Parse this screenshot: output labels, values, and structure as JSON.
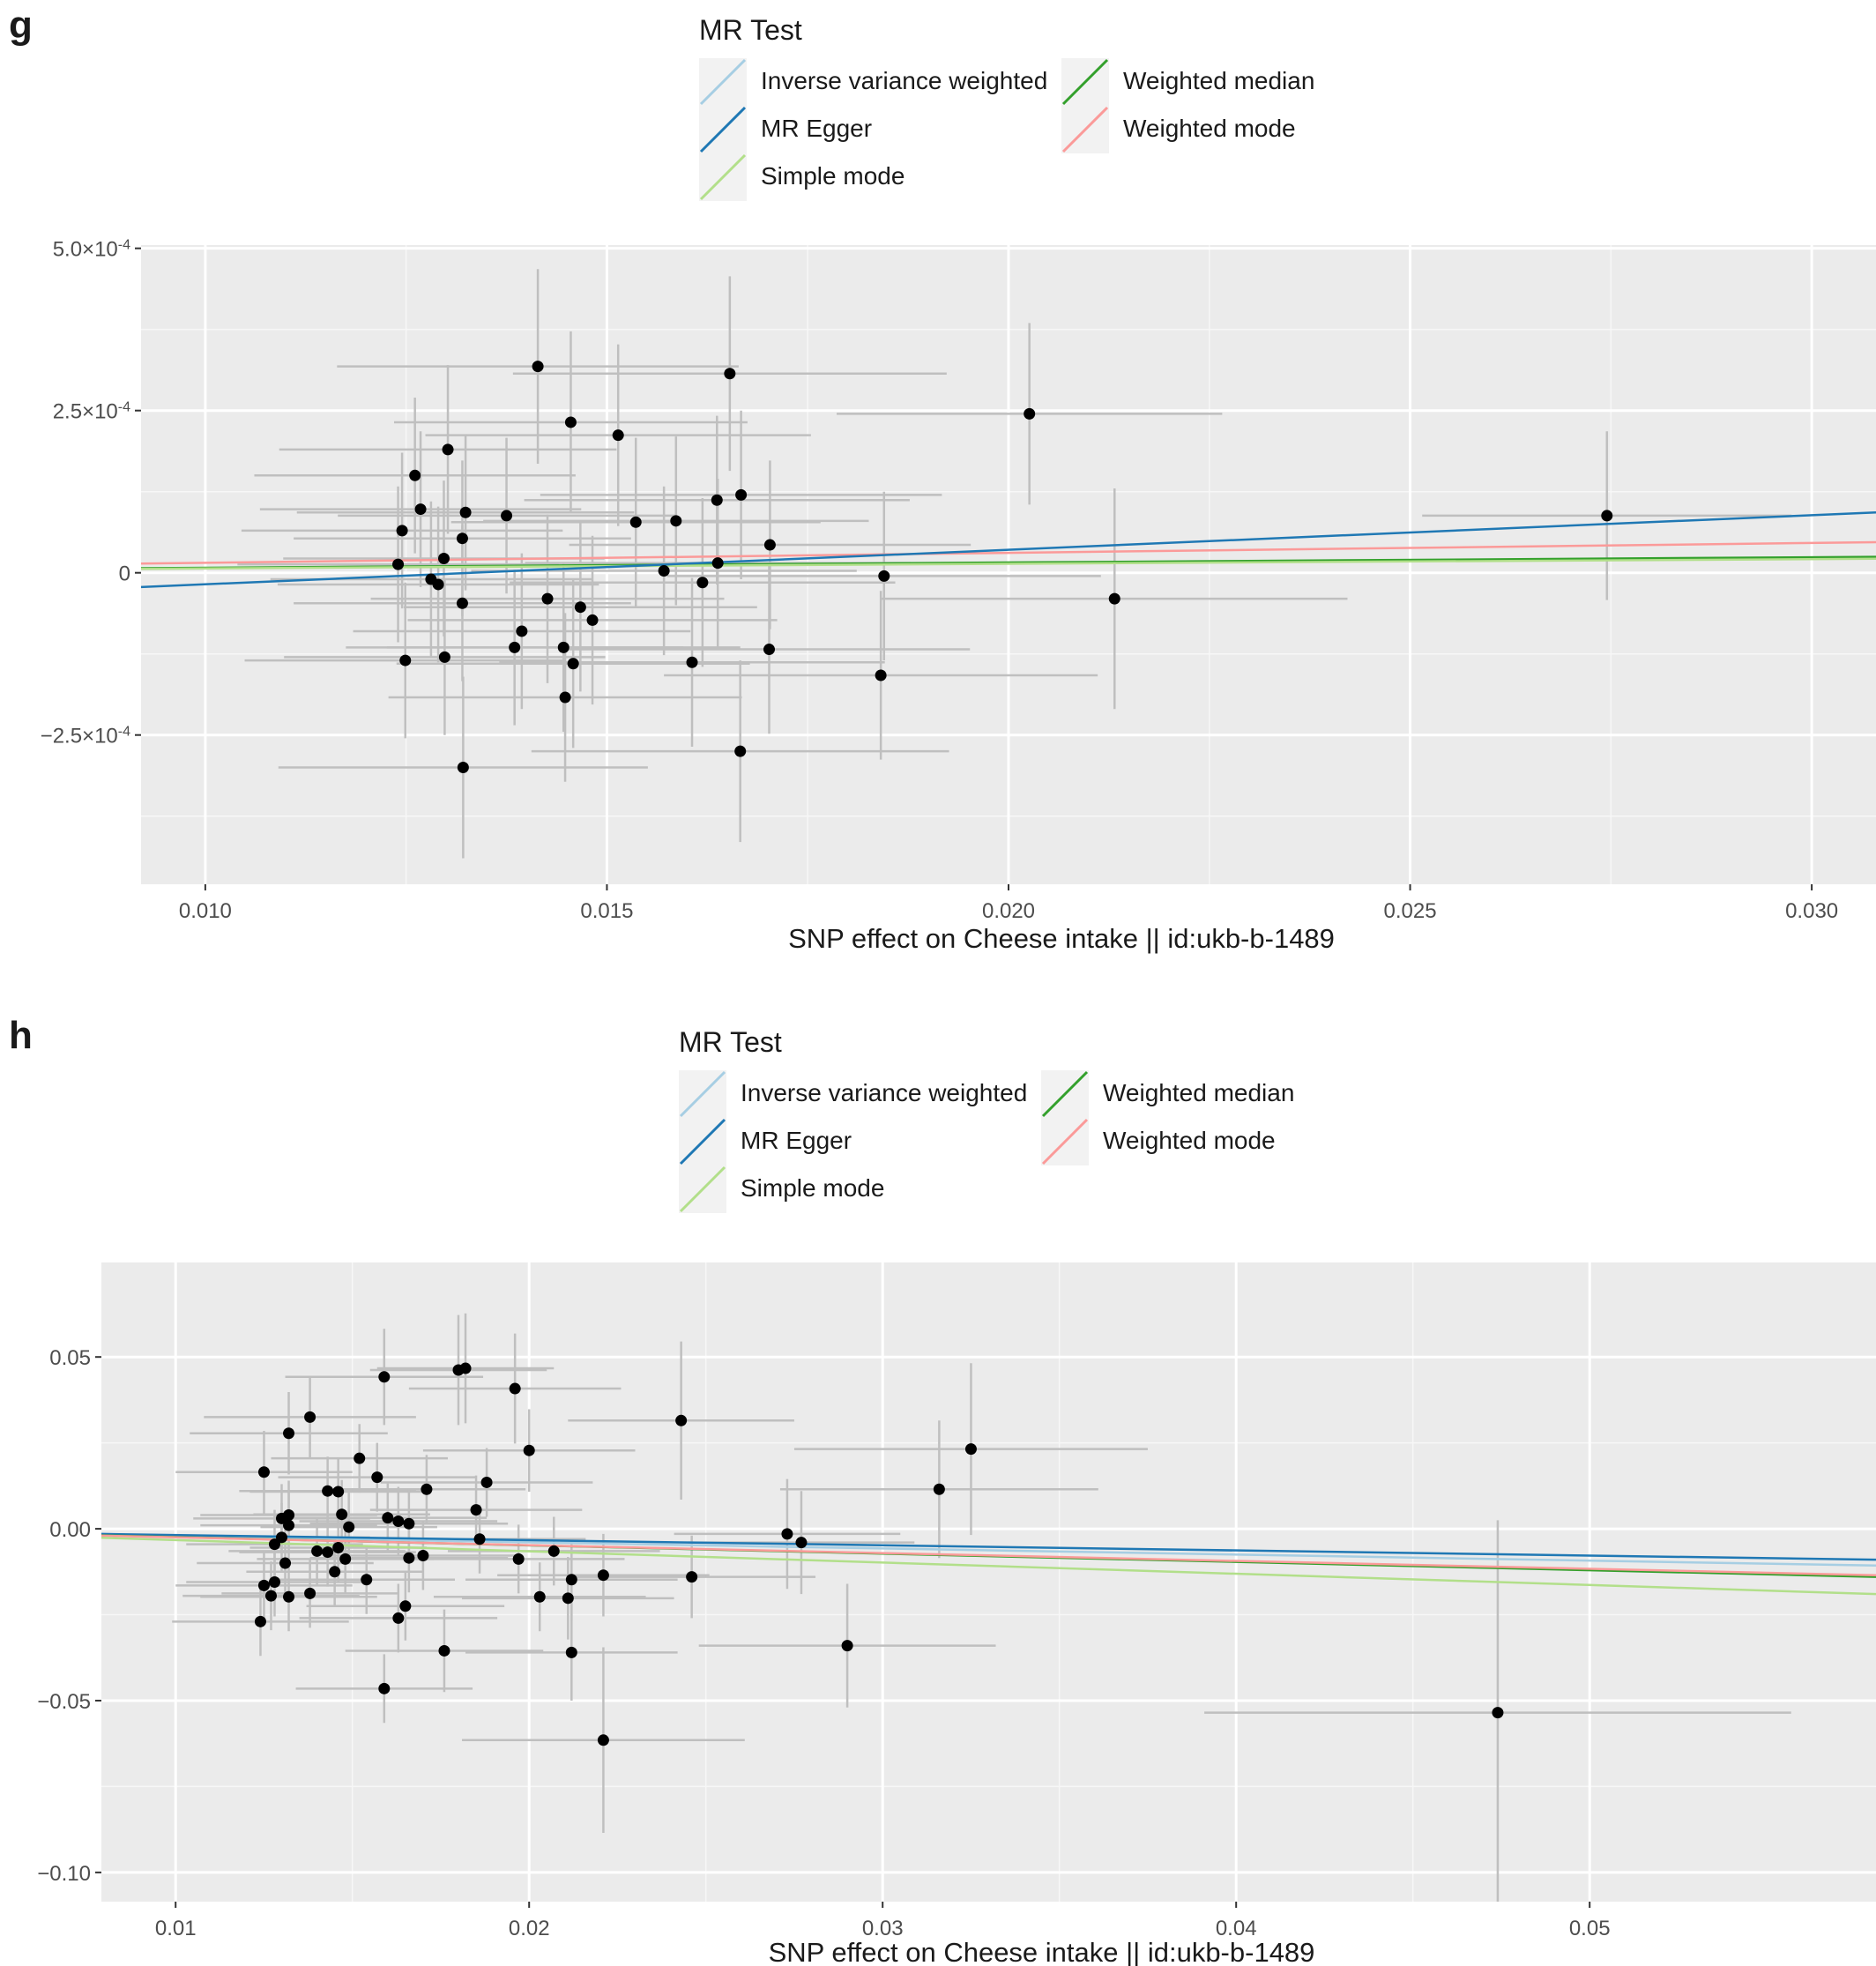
{
  "figures": [
    {
      "panel_label": "g",
      "legend_title": "MR Test",
      "legend_items": [
        {
          "name": "Inverse variance weighted",
          "color": "#a6cee3"
        },
        {
          "name": "MR Egger",
          "color": "#1f78b4"
        },
        {
          "name": "Simple mode",
          "color": "#b2df8a"
        },
        {
          "name": "Weighted median",
          "color": "#33a02c"
        },
        {
          "name": "Weighted mode",
          "color": "#fb9a99"
        }
      ]
    },
    {
      "panel_label": "h",
      "legend_title": "MR Test",
      "legend_items": [
        {
          "name": "Inverse variance weighted",
          "color": "#a6cee3"
        },
        {
          "name": "MR Egger",
          "color": "#1f78b4"
        },
        {
          "name": "Simple mode",
          "color": "#b2df8a"
        },
        {
          "name": "Weighted median",
          "color": "#33a02c"
        },
        {
          "name": "Weighted mode",
          "color": "#fb9a99"
        }
      ]
    }
  ],
  "chart_data": [
    {
      "type": "scatter",
      "xlabel": "SNP effect on Cheese intake || id:ukb-b-1489",
      "ylabel": "",
      "xlim": [
        0.0092,
        0.0308
      ],
      "ylim": [
        -0.00048,
        0.000505
      ],
      "xticks": [
        0.01,
        0.015,
        0.02,
        0.025,
        0.03
      ],
      "xtick_labels": [
        "0.010",
        "0.015",
        "0.020",
        "0.025",
        "0.030"
      ],
      "yticks": [
        0.0005,
        0.00025,
        0,
        -0.00025
      ],
      "ytick_labels": [
        {
          "base": "5.0×10",
          "exp": "-4"
        },
        {
          "base": "2.5×10",
          "exp": "-4"
        },
        {
          "base": "0",
          "exp": ""
        },
        {
          "base": "−2.5×10",
          "exp": "-4"
        }
      ],
      "grid": true,
      "points": [
        {
          "x": 0.01414,
          "y": 0.000318,
          "xse": 0.0025,
          "yse": 0.00015
        },
        {
          "x": 0.01653,
          "y": 0.000307,
          "xse": 0.0027,
          "yse": 0.00015
        },
        {
          "x": 0.01455,
          "y": 0.000232,
          "xse": 0.0022,
          "yse": 0.00014
        },
        {
          "x": 0.01514,
          "y": 0.000212,
          "xse": 0.0024,
          "yse": 0.00014
        },
        {
          "x": 0.02026,
          "y": 0.000245,
          "xse": 0.0024,
          "yse": 0.00014
        },
        {
          "x": 0.01302,
          "y": 0.00019,
          "xse": 0.0021,
          "yse": 0.00013
        },
        {
          "x": 0.01261,
          "y": 0.00015,
          "xse": 0.002,
          "yse": 0.00012
        },
        {
          "x": 0.01268,
          "y": 9.8e-05,
          "xse": 0.002,
          "yse": 0.00012
        },
        {
          "x": 0.01324,
          "y": 9.3e-05,
          "xse": 0.0021,
          "yse": 0.00012
        },
        {
          "x": 0.01375,
          "y": 8.8e-05,
          "xse": 0.0021,
          "yse": 0.00012
        },
        {
          "x": 0.01536,
          "y": 7.8e-05,
          "xse": 0.0023,
          "yse": 0.00013
        },
        {
          "x": 0.01586,
          "y": 8e-05,
          "xse": 0.0024,
          "yse": 0.00013
        },
        {
          "x": 0.01637,
          "y": 0.000112,
          "xse": 0.0024,
          "yse": 0.00013
        },
        {
          "x": 0.01667,
          "y": 0.00012,
          "xse": 0.0025,
          "yse": 0.00013
        },
        {
          "x": 0.01245,
          "y": 6.5e-05,
          "xse": 0.002,
          "yse": 0.00012
        },
        {
          "x": 0.0132,
          "y": 5.3e-05,
          "xse": 0.0021,
          "yse": 0.00012
        },
        {
          "x": 0.01297,
          "y": 2.2e-05,
          "xse": 0.002,
          "yse": 0.00012
        },
        {
          "x": 0.0124,
          "y": 1.3e-05,
          "xse": 0.002,
          "yse": 0.00012
        },
        {
          "x": 0.01703,
          "y": 4.3e-05,
          "xse": 0.0025,
          "yse": 0.00013
        },
        {
          "x": 0.01638,
          "y": 1.5e-05,
          "xse": 0.0024,
          "yse": 0.00013
        },
        {
          "x": 0.01571,
          "y": 3e-06,
          "xse": 0.0024,
          "yse": 0.00013
        },
        {
          "x": 0.01281,
          "y": -1e-05,
          "xse": 0.002,
          "yse": 0.00012
        },
        {
          "x": 0.0129,
          "y": -1.8e-05,
          "xse": 0.002,
          "yse": 0.00012
        },
        {
          "x": 0.01619,
          "y": -1.5e-05,
          "xse": 0.0024,
          "yse": 0.00013
        },
        {
          "x": 0.01845,
          "y": -5e-06,
          "xse": 0.0027,
          "yse": 0.00013
        },
        {
          "x": 0.0132,
          "y": -4.7e-05,
          "xse": 0.0021,
          "yse": 0.00012
        },
        {
          "x": 0.01426,
          "y": -4e-05,
          "xse": 0.0022,
          "yse": 0.00013
        },
        {
          "x": 0.01467,
          "y": -5.3e-05,
          "xse": 0.0022,
          "yse": 0.00013
        },
        {
          "x": 0.01482,
          "y": -7.3e-05,
          "xse": 0.0023,
          "yse": 0.00013
        },
        {
          "x": 0.01394,
          "y": -9e-05,
          "xse": 0.0021,
          "yse": 0.00012
        },
        {
          "x": 0.01385,
          "y": -0.000115,
          "xse": 0.0021,
          "yse": 0.00012
        },
        {
          "x": 0.01446,
          "y": -0.000115,
          "xse": 0.0022,
          "yse": 0.00013
        },
        {
          "x": 0.01702,
          "y": -0.000118,
          "xse": 0.0025,
          "yse": 0.00013
        },
        {
          "x": 0.01249,
          "y": -0.000135,
          "xse": 0.002,
          "yse": 0.00012
        },
        {
          "x": 0.01298,
          "y": -0.00013,
          "xse": 0.002,
          "yse": 0.00012
        },
        {
          "x": 0.01458,
          "y": -0.00014,
          "xse": 0.0022,
          "yse": 0.00013
        },
        {
          "x": 0.01606,
          "y": -0.000138,
          "xse": 0.0024,
          "yse": 0.00013
        },
        {
          "x": 0.02132,
          "y": -4e-05,
          "xse": 0.0029,
          "yse": 0.00017
        },
        {
          "x": 0.01841,
          "y": -0.000158,
          "xse": 0.0027,
          "yse": 0.00013
        },
        {
          "x": 0.01448,
          "y": -0.000192,
          "xse": 0.0022,
          "yse": 0.00013
        },
        {
          "x": 0.01666,
          "y": -0.000275,
          "xse": 0.0026,
          "yse": 0.00014
        },
        {
          "x": 0.01321,
          "y": -0.0003,
          "xse": 0.0023,
          "yse": 0.00014
        },
        {
          "x": 0.02745,
          "y": 8.8e-05,
          "xse": 0.0023,
          "yse": 0.00013
        }
      ],
      "series": [
        {
          "name": "Inverse variance weighted",
          "color": "#a6cee3",
          "x": [
            0.0092,
            0.0308
          ],
          "y": [
            6.8e-06,
            2.36e-05
          ]
        },
        {
          "name": "Weighted median",
          "color": "#33a02c",
          "x": [
            0.0092,
            0.0308
          ],
          "y": [
            7.1e-06,
            2.46e-05
          ]
        },
        {
          "name": "Simple mode",
          "color": "#b2df8a",
          "x": [
            0.0092,
            0.0308
          ],
          "y": [
            6.1e-06,
            2.16e-05
          ]
        },
        {
          "name": "Weighted mode",
          "color": "#fb9a99",
          "x": [
            0.0092,
            0.0308
          ],
          "y": [
            1.42e-05,
            4.72e-05
          ]
        },
        {
          "name": "MR Egger",
          "color": "#1f78b4",
          "x": [
            0.0092,
            0.0308
          ],
          "y": [
            -2.2e-05,
            9.3e-05
          ]
        }
      ]
    },
    {
      "type": "scatter",
      "xlabel": "SNP effect on Cheese intake || id:ukb-b-1489",
      "ylabel": "",
      "xlim": [
        0.0079,
        0.0581
      ],
      "ylim": [
        -0.1085,
        0.0775
      ],
      "xticks": [
        0.01,
        0.02,
        0.03,
        0.04,
        0.05
      ],
      "xtick_labels": [
        "0.01",
        "0.02",
        "0.03",
        "0.04",
        "0.05"
      ],
      "yticks": [
        0.05,
        0,
        -0.05,
        -0.1
      ],
      "ytick_labels": [
        {
          "base": "0.05",
          "exp": ""
        },
        {
          "base": "0.00",
          "exp": ""
        },
        {
          "base": "−0.05",
          "exp": ""
        },
        {
          "base": "−0.10",
          "exp": ""
        }
      ],
      "grid": true,
      "points": [
        {
          "x": 0.0159,
          "y": 0.0442,
          "xse": 0.0028,
          "yse": 0.014
        },
        {
          "x": 0.018,
          "y": 0.0462,
          "xse": 0.0025,
          "yse": 0.016
        },
        {
          "x": 0.0182,
          "y": 0.0467,
          "xse": 0.0025,
          "yse": 0.016
        },
        {
          "x": 0.0196,
          "y": 0.0408,
          "xse": 0.003,
          "yse": 0.016
        },
        {
          "x": 0.0243,
          "y": 0.0315,
          "xse": 0.0032,
          "yse": 0.023
        },
        {
          "x": 0.0138,
          "y": 0.0325,
          "xse": 0.003,
          "yse": 0.012
        },
        {
          "x": 0.0132,
          "y": 0.0278,
          "xse": 0.0028,
          "yse": 0.012
        },
        {
          "x": 0.02,
          "y": 0.0228,
          "xse": 0.003,
          "yse": 0.012
        },
        {
          "x": 0.0325,
          "y": 0.0232,
          "xse": 0.005,
          "yse": 0.025
        },
        {
          "x": 0.0152,
          "y": 0.0205,
          "xse": 0.0025,
          "yse": 0.01
        },
        {
          "x": 0.0125,
          "y": 0.0165,
          "xse": 0.0025,
          "yse": 0.012
        },
        {
          "x": 0.0157,
          "y": 0.015,
          "xse": 0.0028,
          "yse": 0.01
        },
        {
          "x": 0.0188,
          "y": 0.0135,
          "xse": 0.003,
          "yse": 0.01
        },
        {
          "x": 0.0316,
          "y": 0.0115,
          "xse": 0.0045,
          "yse": 0.02
        },
        {
          "x": 0.0171,
          "y": 0.0115,
          "xse": 0.0028,
          "yse": 0.01
        },
        {
          "x": 0.0143,
          "y": 0.011,
          "xse": 0.0025,
          "yse": 0.01
        },
        {
          "x": 0.0146,
          "y": 0.0108,
          "xse": 0.0025,
          "yse": 0.01
        },
        {
          "x": 0.0185,
          "y": 0.0055,
          "xse": 0.003,
          "yse": 0.01
        },
        {
          "x": 0.0147,
          "y": 0.0042,
          "xse": 0.0025,
          "yse": 0.01
        },
        {
          "x": 0.0132,
          "y": 0.004,
          "xse": 0.0025,
          "yse": 0.01
        },
        {
          "x": 0.013,
          "y": 0.003,
          "xse": 0.0025,
          "yse": 0.01
        },
        {
          "x": 0.016,
          "y": 0.0032,
          "xse": 0.0028,
          "yse": 0.01
        },
        {
          "x": 0.0163,
          "y": 0.0022,
          "xse": 0.0028,
          "yse": 0.01
        },
        {
          "x": 0.0166,
          "y": 0.0015,
          "xse": 0.0028,
          "yse": 0.01
        },
        {
          "x": 0.0132,
          "y": 0.001,
          "xse": 0.0025,
          "yse": 0.01
        },
        {
          "x": 0.0149,
          "y": 0.0005,
          "xse": 0.0025,
          "yse": 0.01
        },
        {
          "x": 0.0273,
          "y": -0.0015,
          "xse": 0.0032,
          "yse": 0.016
        },
        {
          "x": 0.013,
          "y": -0.0025,
          "xse": 0.0025,
          "yse": 0.01
        },
        {
          "x": 0.0186,
          "y": -0.003,
          "xse": 0.003,
          "yse": 0.01
        },
        {
          "x": 0.0277,
          "y": -0.004,
          "xse": 0.0032,
          "yse": 0.015
        },
        {
          "x": 0.0128,
          "y": -0.0045,
          "xse": 0.0025,
          "yse": 0.01
        },
        {
          "x": 0.0146,
          "y": -0.0055,
          "xse": 0.0025,
          "yse": 0.01
        },
        {
          "x": 0.014,
          "y": -0.0065,
          "xse": 0.0025,
          "yse": 0.01
        },
        {
          "x": 0.0143,
          "y": -0.0068,
          "xse": 0.0025,
          "yse": 0.01
        },
        {
          "x": 0.0207,
          "y": -0.0065,
          "xse": 0.003,
          "yse": 0.01
        },
        {
          "x": 0.017,
          "y": -0.0078,
          "xse": 0.0028,
          "yse": 0.01
        },
        {
          "x": 0.0166,
          "y": -0.0085,
          "xse": 0.0028,
          "yse": 0.01
        },
        {
          "x": 0.0148,
          "y": -0.0088,
          "xse": 0.0025,
          "yse": 0.01
        },
        {
          "x": 0.0197,
          "y": -0.0088,
          "xse": 0.003,
          "yse": 0.01
        },
        {
          "x": 0.0131,
          "y": -0.01,
          "xse": 0.0025,
          "yse": 0.01
        },
        {
          "x": 0.0145,
          "y": -0.0125,
          "xse": 0.0025,
          "yse": 0.01
        },
        {
          "x": 0.0221,
          "y": -0.0135,
          "xse": 0.003,
          "yse": 0.012
        },
        {
          "x": 0.0246,
          "y": -0.014,
          "xse": 0.0035,
          "yse": 0.012
        },
        {
          "x": 0.0154,
          "y": -0.0148,
          "xse": 0.0025,
          "yse": 0.01
        },
        {
          "x": 0.0212,
          "y": -0.0148,
          "xse": 0.003,
          "yse": 0.012
        },
        {
          "x": 0.0128,
          "y": -0.0155,
          "xse": 0.0025,
          "yse": 0.01
        },
        {
          "x": 0.0125,
          "y": -0.0165,
          "xse": 0.0025,
          "yse": 0.01
        },
        {
          "x": 0.0127,
          "y": -0.0195,
          "xse": 0.0025,
          "yse": 0.01
        },
        {
          "x": 0.0132,
          "y": -0.0198,
          "xse": 0.0025,
          "yse": 0.01
        },
        {
          "x": 0.0138,
          "y": -0.0188,
          "xse": 0.0025,
          "yse": 0.01
        },
        {
          "x": 0.0203,
          "y": -0.0198,
          "xse": 0.003,
          "yse": 0.01
        },
        {
          "x": 0.0211,
          "y": -0.0202,
          "xse": 0.003,
          "yse": 0.012
        },
        {
          "x": 0.0165,
          "y": -0.0225,
          "xse": 0.0028,
          "yse": 0.01
        },
        {
          "x": 0.0163,
          "y": -0.026,
          "xse": 0.0028,
          "yse": 0.01
        },
        {
          "x": 0.0124,
          "y": -0.027,
          "xse": 0.0025,
          "yse": 0.01
        },
        {
          "x": 0.029,
          "y": -0.034,
          "xse": 0.0042,
          "yse": 0.018
        },
        {
          "x": 0.0176,
          "y": -0.0355,
          "xse": 0.0028,
          "yse": 0.012
        },
        {
          "x": 0.0212,
          "y": -0.036,
          "xse": 0.003,
          "yse": 0.014
        },
        {
          "x": 0.0159,
          "y": -0.0465,
          "xse": 0.0025,
          "yse": 0.01
        },
        {
          "x": 0.0474,
          "y": -0.0535,
          "xse": 0.0083,
          "yse": 0.056
        },
        {
          "x": 0.0221,
          "y": -0.0615,
          "xse": 0.004,
          "yse": 0.027
        }
      ],
      "series": [
        {
          "name": "Inverse variance weighted",
          "color": "#a6cee3",
          "x": [
            0.0079,
            0.0581
          ],
          "y": [
            -0.0018,
            -0.0107
          ]
        },
        {
          "name": "MR Egger",
          "color": "#1f78b4",
          "x": [
            0.0079,
            0.0581
          ],
          "y": [
            -0.0015,
            -0.009
          ]
        },
        {
          "name": "Weighted median",
          "color": "#33a02c",
          "x": [
            0.0079,
            0.0581
          ],
          "y": [
            -0.0019,
            -0.014
          ]
        },
        {
          "name": "Weighted mode",
          "color": "#fb9a99",
          "x": [
            0.0079,
            0.0581
          ],
          "y": [
            -0.002,
            -0.0135
          ]
        },
        {
          "name": "Simple mode",
          "color": "#b2df8a",
          "x": [
            0.0079,
            0.0581
          ],
          "y": [
            -0.0026,
            -0.019
          ]
        }
      ]
    }
  ]
}
